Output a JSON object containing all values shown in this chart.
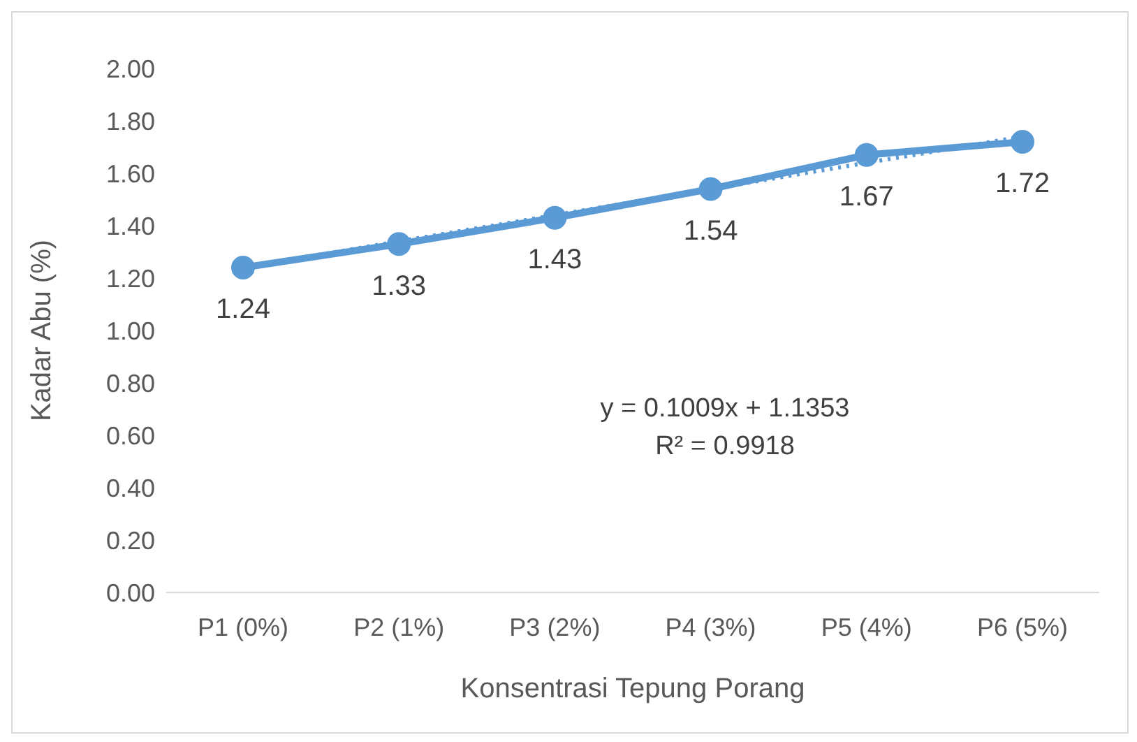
{
  "chart_data": {
    "type": "line",
    "xlabel": "Konsentrasi Tepung Porang",
    "ylabel": "Kadar Abu (%)",
    "categories": [
      "P1 (0%)",
      "P2 (1%)",
      "P3 (2%)",
      "P4 (3%)",
      "P5 (4%)",
      "P6 (5%)"
    ],
    "series": [
      {
        "color": "#5b9bd5",
        "values": [
          1.24,
          1.33,
          1.43,
          1.54,
          1.67,
          1.72
        ],
        "value_labels": [
          "1.24",
          "1.33",
          "1.43",
          "1.54",
          "1.67",
          "1.72"
        ],
        "marker": "circle",
        "line_style": "solid"
      },
      {
        "color": "#5b9bd5",
        "values": [
          1.24,
          1.34,
          1.44,
          1.54,
          1.64,
          1.74
        ],
        "marker": "none",
        "line_style": "dotted"
      }
    ],
    "ylim": [
      0,
      2
    ],
    "yticks": [
      {
        "value": 0,
        "label": "0.00"
      },
      {
        "value": 0.2,
        "label": "0.20"
      },
      {
        "value": 0.4,
        "label": "0.40"
      },
      {
        "value": 0.6,
        "label": "0.60"
      },
      {
        "value": 0.8,
        "label": "0.80"
      },
      {
        "value": 1,
        "label": "1.00"
      },
      {
        "value": 1.2,
        "label": "1.20"
      },
      {
        "value": 1.4,
        "label": "1.40"
      },
      {
        "value": 1.6,
        "label": "1.60"
      },
      {
        "value": 1.8,
        "label": "1.80"
      },
      {
        "value": 2,
        "label": "2.00"
      }
    ],
    "grid": false,
    "legend": false,
    "annotations": [
      "y = 0.1009x + 1.1353",
      "R² = 0.9918"
    ]
  }
}
